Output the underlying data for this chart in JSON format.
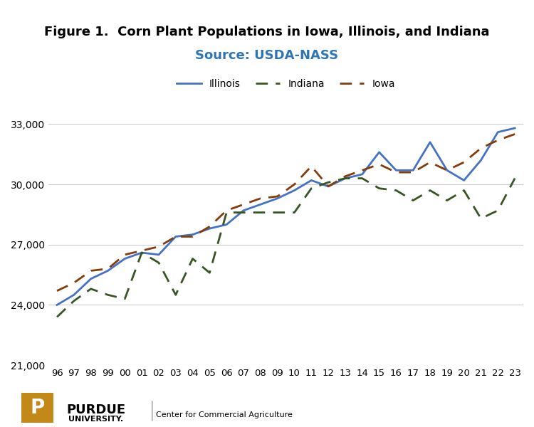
{
  "title": "Figure 1.  Corn Plant Populations in Iowa, Illinois, and Indiana",
  "source": "Source: USDA-NASS",
  "years": [
    "96",
    "97",
    "98",
    "99",
    "00",
    "01",
    "02",
    "03",
    "04",
    "05",
    "06",
    "07",
    "08",
    "09",
    "10",
    "11",
    "12",
    "13",
    "14",
    "15",
    "16",
    "17",
    "18",
    "19",
    "20",
    "21",
    "22",
    "23"
  ],
  "illinois": [
    24000,
    24500,
    25300,
    25700,
    26300,
    26600,
    26500,
    27400,
    27500,
    27800,
    28000,
    28700,
    29000,
    29300,
    29700,
    30200,
    29900,
    30300,
    30500,
    31600,
    30700,
    30700,
    32100,
    30700,
    30200,
    31200,
    32600,
    32800
  ],
  "indiana": [
    23400,
    24200,
    24800,
    24500,
    24300,
    26600,
    26100,
    24500,
    26300,
    25600,
    28600,
    28600,
    28600,
    28600,
    28600,
    29800,
    30100,
    30300,
    30300,
    29800,
    29700,
    29200,
    29700,
    29200,
    29700,
    28300,
    28700,
    30300
  ],
  "iowa": [
    24700,
    25100,
    25700,
    25800,
    26500,
    26700,
    26900,
    27400,
    27400,
    27900,
    28700,
    29000,
    29300,
    29400,
    30000,
    30900,
    29900,
    30400,
    30700,
    31000,
    30600,
    30600,
    31100,
    30700,
    31100,
    31800,
    32200,
    32500
  ],
  "illinois_color": "#4472C4",
  "indiana_color": "#375623",
  "iowa_color": "#843C0C",
  "ylim": [
    21000,
    34000
  ],
  "yticks": [
    21000,
    24000,
    27000,
    30000,
    33000
  ],
  "bg_color": "#FFFFFF",
  "grid_color": "#CCCCCC",
  "title_fontsize": 13,
  "source_fontsize": 13,
  "source_color": "#2E75B6"
}
